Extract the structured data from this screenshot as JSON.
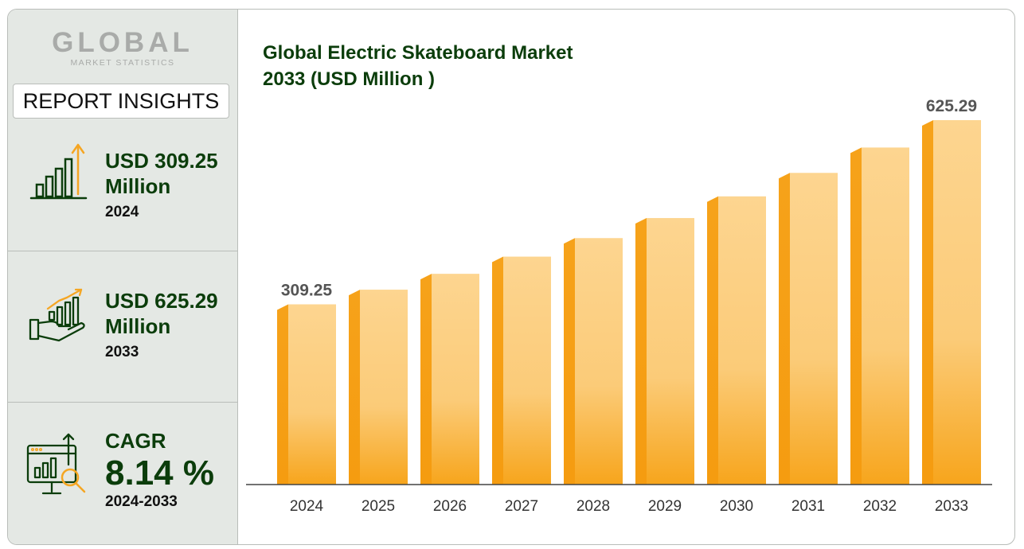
{
  "logo": {
    "word": "GLOBAL",
    "sub": "MARKET STATISTICS"
  },
  "sidebar": {
    "heading": "REPORT INSIGHTS",
    "stats": [
      {
        "line1": "USD 309.25",
        "line2": "Million",
        "line3": "2024",
        "icon": "bar-chart-up-arrow-icon"
      },
      {
        "line1": "USD 625.29",
        "line2": "Million",
        "line3": "2033",
        "icon": "hand-growth-chart-icon"
      },
      {
        "line1": "CAGR",
        "line2": "8.14 %",
        "line3": "2024-2033",
        "icon": "monitor-analytics-icon"
      }
    ]
  },
  "colors": {
    "accent": "#f5a623",
    "bar_light": "#fdd88f",
    "bar_dark": "#f7a318",
    "title": "#0b3d0b"
  },
  "chart_data": {
    "type": "bar",
    "title_line1": "Global Electric Skateboard Market",
    "title_line2": "2033 (USD Million )",
    "categories": [
      "2024",
      "2025",
      "2026",
      "2027",
      "2028",
      "2029",
      "2030",
      "2031",
      "2032",
      "2033"
    ],
    "values": [
      309.25,
      334.4,
      361.6,
      391.1,
      422.9,
      457.3,
      494.5,
      534.8,
      578.3,
      625.29
    ],
    "data_labels": {
      "0": "309.25",
      "9": "625.29"
    },
    "xlabel": "",
    "ylabel": "",
    "ylim": [
      0,
      700
    ],
    "grid": false,
    "legend": "none"
  }
}
